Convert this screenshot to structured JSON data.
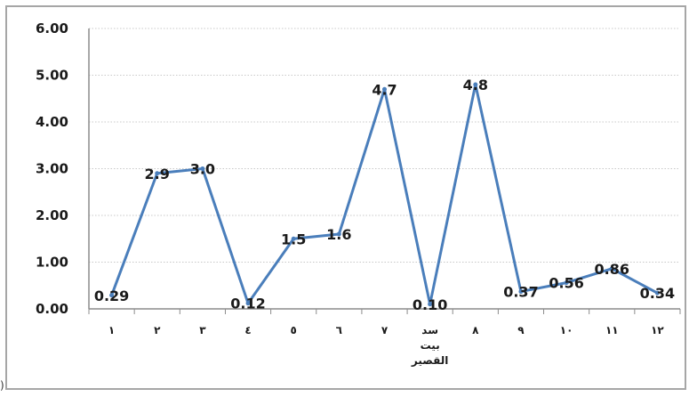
{
  "chart_data": {
    "type": "line",
    "categories": [
      "١",
      "٢",
      "٣",
      "٤",
      "٥",
      "٦",
      "٧",
      "سد بيت القصير",
      "٨",
      "٩",
      "١٠",
      "١١",
      "١٢"
    ],
    "series": [
      {
        "values": [
          0.29,
          2.9,
          3.0,
          0.12,
          1.5,
          1.6,
          4.7,
          0.1,
          4.8,
          0.37,
          0.56,
          0.86,
          0.34
        ],
        "labels": [
          "0.29",
          "2.9",
          "3.0",
          "0.12",
          "1.5",
          "1.6",
          "4.7",
          "0.10",
          "4.8",
          "0.37",
          "0.56",
          "0.86",
          "0.34"
        ],
        "color": "#4a7ebb"
      }
    ],
    "yticks": [
      "0.00",
      "1.00",
      "2.00",
      "3.00",
      "4.00",
      "5.00",
      "6.00"
    ],
    "ylim": [
      0,
      6
    ],
    "title": "",
    "xlabel": "",
    "ylabel": "",
    "grid": "horizontal dotted",
    "colors": {
      "line": "#4a7ebb",
      "grid": "#c8c8c8",
      "axis": "#8c8c8c",
      "frame": "#a6a6a6"
    }
  },
  "edge_mark": ")"
}
